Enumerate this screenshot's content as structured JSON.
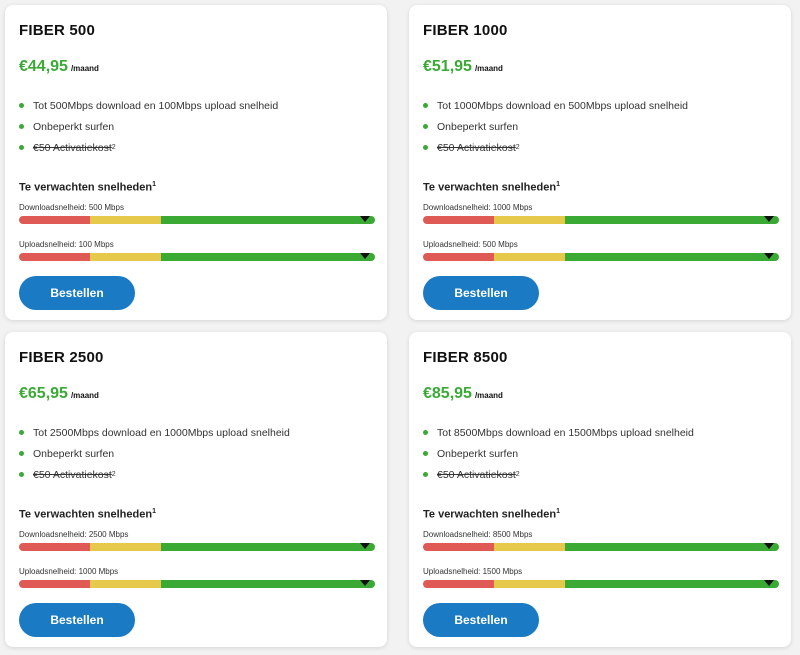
{
  "colors": {
    "price": "#3aaa35",
    "bullet": "#3aaa35",
    "button": "#1a7ac4",
    "bar_red": "#e05a55",
    "bar_yellow": "#e6c84a",
    "bar_green": "#3aaa35"
  },
  "plans": [
    {
      "title": "FIBER 500",
      "price": "€44,95",
      "unit": "/maand",
      "features": [
        "Tot 500Mbps download en 100Mbps upload snelheid",
        "Onbeperkt surfen"
      ],
      "activation": "€50 Activatiekost",
      "activation_sup": "2",
      "speed_title": "Te verwachten snelheden",
      "speed_title_sup": "1",
      "download_label": "Downloadsnelheid: 500 Mbps",
      "upload_label": "Uploadsnelheid: 100 Mbps",
      "button": "Bestellen"
    },
    {
      "title": "FIBER 1000",
      "price": "€51,95",
      "unit": "/maand",
      "features": [
        "Tot 1000Mbps download en 500Mbps upload snelheid",
        "Onbeperkt surfen"
      ],
      "activation": "€50 Activatiekost",
      "activation_sup": "2",
      "speed_title": "Te verwachten snelheden",
      "speed_title_sup": "1",
      "download_label": "Downloadsnelheid: 1000 Mbps",
      "upload_label": "Uploadsnelheid: 500 Mbps",
      "button": "Bestellen"
    },
    {
      "title": "FIBER 2500",
      "price": "€65,95",
      "unit": "/maand",
      "features": [
        "Tot 2500Mbps download en 1000Mbps upload snelheid",
        "Onbeperkt surfen"
      ],
      "activation": "€50 Activatiekost",
      "activation_sup": "2",
      "speed_title": "Te verwachten snelheden",
      "speed_title_sup": "1",
      "download_label": "Downloadsnelheid: 2500 Mbps",
      "upload_label": "Uploadsnelheid: 1000 Mbps",
      "button": "Bestellen"
    },
    {
      "title": "FIBER 8500",
      "price": "€85,95",
      "unit": "/maand",
      "features": [
        "Tot 8500Mbps download en 1500Mbps upload snelheid",
        "Onbeperkt surfen"
      ],
      "activation": "€50 Activatiekost",
      "activation_sup": "2",
      "speed_title": "Te verwachten snelheden",
      "speed_title_sup": "1",
      "download_label": "Downloadsnelheid: 8500 Mbps",
      "upload_label": "Uploadsnelheid: 1500 Mbps",
      "button": "Bestellen"
    }
  ]
}
